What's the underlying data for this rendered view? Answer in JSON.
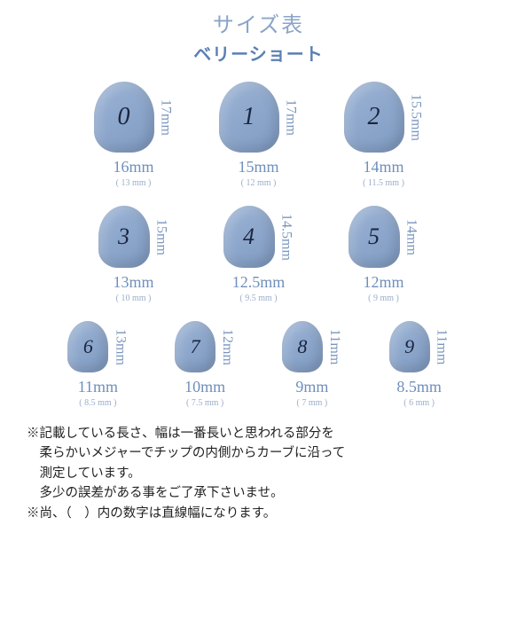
{
  "colors": {
    "title": "#8aa4c8",
    "subtitle": "#5b7fb5",
    "nail_base": "#8ea8cd",
    "height_label": "#7a96be",
    "width_label": "#6f8fbb",
    "flat_label": "#9aaecb",
    "nail_number": "#1a2540"
  },
  "header": {
    "title": "サイズ表",
    "subtitle": "ベリーショート"
  },
  "rows": [
    {
      "nail_w": 68,
      "nail_h": 80,
      "radius": "34px 34px 26px 26px / 40px 40px 24px 24px",
      "font": 28,
      "items": [
        {
          "num": "0",
          "height": "17mm",
          "width": "16mm",
          "flat": "( 13 mm )"
        },
        {
          "num": "1",
          "height": "17mm",
          "width": "15mm",
          "flat": "( 12 mm )"
        },
        {
          "num": "2",
          "height": "15.5mm",
          "width": "14mm",
          "flat": "( 11.5 mm )"
        }
      ]
    },
    {
      "nail_w": 58,
      "nail_h": 70,
      "radius": "29px 29px 22px 22px / 35px 35px 20px 20px",
      "font": 26,
      "items": [
        {
          "num": "3",
          "height": "15mm",
          "width": "13mm",
          "flat": "( 10 mm )"
        },
        {
          "num": "4",
          "height": "14.5mm",
          "width": "12.5mm",
          "flat": "( 9.5 mm )"
        },
        {
          "num": "5",
          "height": "14mm",
          "width": "12mm",
          "flat": "( 9 mm )"
        }
      ]
    },
    {
      "nail_w": 46,
      "nail_h": 58,
      "radius": "23px 23px 18px 18px / 29px 29px 16px 16px",
      "font": 22,
      "items": [
        {
          "num": "6",
          "height": "13mm",
          "width": "11mm",
          "flat": "( 8.5 mm )"
        },
        {
          "num": "7",
          "height": "12mm",
          "width": "10mm",
          "flat": "( 7.5 mm )"
        },
        {
          "num": "8",
          "height": "11mm",
          "width": "9mm",
          "flat": "( 7 mm )"
        },
        {
          "num": "9",
          "height": "11mm",
          "width": "8.5mm",
          "flat": "( 6 mm )"
        }
      ]
    }
  ],
  "notes": {
    "line1": "※記載している長さ、幅は一番長いと思われる部分を",
    "line2": "　柔らかいメジャーでチップの内側からカーブに沿って",
    "line3": "　測定しています。",
    "line4": "　多少の誤差がある事をご了承下さいませ。",
    "line5": "※尚、（　）内の数字は直線幅になります。"
  }
}
